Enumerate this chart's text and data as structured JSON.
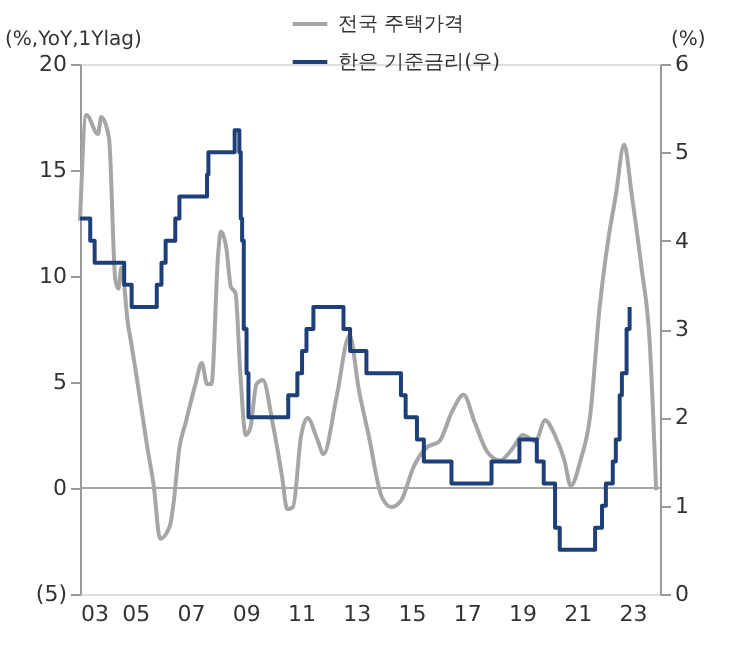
{
  "chart_data": {
    "type": "line",
    "ylabel": "(%,YoY,1Ylag)",
    "y2label": "(%)",
    "xlim": [
      2003,
      2024
    ],
    "xticks": [
      {
        "value": 2003,
        "label": "03"
      },
      {
        "value": 2005,
        "label": "05"
      },
      {
        "value": 2007,
        "label": "07"
      },
      {
        "value": 2009,
        "label": "09"
      },
      {
        "value": 2011,
        "label": "11"
      },
      {
        "value": 2013,
        "label": "13"
      },
      {
        "value": 2015,
        "label": "15"
      },
      {
        "value": 2017,
        "label": "17"
      },
      {
        "value": 2019,
        "label": "19"
      },
      {
        "value": 2021,
        "label": "21"
      },
      {
        "value": 2023,
        "label": "23"
      }
    ],
    "ylim": [
      -5,
      20
    ],
    "yticks": [
      {
        "value": -5,
        "label": "(5)"
      },
      0,
      5,
      10,
      15,
      20
    ],
    "y2lim": [
      0,
      6
    ],
    "y2ticks": [
      0,
      1,
      2,
      3,
      4,
      5,
      6
    ],
    "grid": false,
    "legend": "top right",
    "marker": "none",
    "line_style": "solid",
    "ref_lines": [
      {
        "axis": "y",
        "value": 0,
        "color": "#a6a6a6"
      }
    ],
    "series": [
      {
        "name": "전국 주택가격",
        "type": "line",
        "color": "#a6a6a6",
        "x": [
          2003.0,
          2003.23,
          2003.65,
          2003.77,
          2004.05,
          2004.28,
          2004.39,
          2004.5,
          2004.74,
          2004.86,
          2005.09,
          2005.44,
          2005.67,
          2005.9,
          2006.25,
          2006.37,
          2006.6,
          2006.83,
          2007.18,
          2007.41,
          2007.6,
          2007.76,
          2008.0,
          2008.1,
          2008.3,
          2008.46,
          2008.63,
          2008.8,
          2009.0,
          2009.16,
          2009.39,
          2009.62,
          2009.97,
          2010.32,
          2010.5,
          2010.71,
          2011.01,
          2011.24,
          2011.59,
          2011.82,
          2012.29,
          2012.76,
          2013.1,
          2013.45,
          2013.92,
          2014.27,
          2014.62,
          2015.08,
          2015.54,
          2016.01,
          2016.47,
          2016.89,
          2017.29,
          2017.75,
          2018.21,
          2018.68,
          2019.03,
          2019.49,
          2019.84,
          2020.19,
          2020.54,
          2020.77,
          2021.12,
          2021.47,
          2021.82,
          2022.16,
          2022.4,
          2022.7,
          2022.98,
          2023.33,
          2023.63,
          2023.86
        ],
        "values": [
          12.6,
          17.6,
          16.7,
          17.5,
          16.5,
          9.8,
          9.4,
          10.4,
          7.7,
          6.8,
          4.9,
          1.9,
          0.1,
          -2.4,
          -1.8,
          -0.9,
          1.9,
          3.1,
          4.9,
          5.9,
          4.9,
          4.9,
          11,
          12.1,
          11.3,
          9.5,
          9.2,
          5.5,
          2.5,
          2.8,
          4.9,
          5.1,
          3.1,
          0.5,
          -1,
          -0.9,
          2.5,
          3.3,
          2.3,
          1.6,
          4.3,
          7.2,
          4.6,
          2.5,
          -0.4,
          -0.9,
          -0.6,
          1.0,
          1.9,
          2.2,
          3.6,
          4.4,
          3.1,
          1.7,
          1.3,
          1.9,
          2.5,
          2.2,
          3.2,
          2.5,
          1.3,
          0.1,
          1.3,
          3.4,
          8.6,
          12,
          13.8,
          16.2,
          13.8,
          10.4,
          6.8,
          -0.1
        ]
      },
      {
        "name": "한은 기준금리(우)",
        "type": "step",
        "axis": "y2",
        "color": "#1f3f78",
        "x": [
          2003.0,
          2003.37,
          2003.53,
          2004.6,
          2004.87,
          2005.78,
          2005.95,
          2006.1,
          2006.45,
          2006.6,
          2007.6,
          2007.65,
          2008.6,
          2008.77,
          2008.82,
          2008.87,
          2008.93,
          2009.03,
          2009.1,
          2010.54,
          2010.87,
          2011.04,
          2011.2,
          2011.45,
          2012.54,
          2012.78,
          2013.37,
          2014.62,
          2014.79,
          2015.2,
          2015.45,
          2016.45,
          2017.9,
          2018.91,
          2019.54,
          2019.79,
          2020.2,
          2020.37,
          2021.65,
          2021.9,
          2022.04,
          2022.29,
          2022.4,
          2022.54,
          2022.62,
          2022.79,
          2022.9
        ],
        "values": [
          4.25,
          4.0,
          3.75,
          3.5,
          3.25,
          3.5,
          3.75,
          4.0,
          4.25,
          4.5,
          4.75,
          5.0,
          5.25,
          5.0,
          4.25,
          4.0,
          3.0,
          2.5,
          2.0,
          2.25,
          2.5,
          2.75,
          3.0,
          3.25,
          3.0,
          2.75,
          2.5,
          2.25,
          2.0,
          1.75,
          1.5,
          1.25,
          1.5,
          1.75,
          1.5,
          1.25,
          0.75,
          0.5,
          0.75,
          1.0,
          1.25,
          1.5,
          1.75,
          2.25,
          2.5,
          3.0,
          3.25
        ]
      }
    ]
  }
}
